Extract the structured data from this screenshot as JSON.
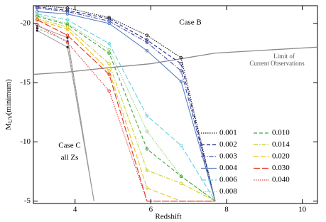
{
  "chart_data": {
    "type": "line",
    "xlabel": "Redshift",
    "ylabel": "M",
    "ylabel_sub": "UV",
    "ylabel_suffix": "(minimum)",
    "annotations": {
      "case_b": "Case B",
      "case_c_1": "Case C",
      "case_c_2": "all Zs",
      "limit_1": "Limit of",
      "limit_2": "Current Observations"
    },
    "xlim": [
      2.9,
      10.4
    ],
    "ylim": [
      -4.8,
      -21.5
    ],
    "xticks": [
      4,
      6,
      8,
      10
    ],
    "yticks": [
      -20,
      -15,
      -10,
      -5
    ],
    "x": [
      3,
      3.8,
      4.9,
      5.9,
      6.8,
      7.7
    ],
    "series": [
      {
        "name": "0.001",
        "color": "#222222",
        "dash": "1.5,1.5",
        "values": [
          -21.5,
          -21.3,
          -20.5,
          -19.0,
          -17.1,
          -5.0
        ]
      },
      {
        "name": "0.002",
        "color": "#1f2a80",
        "dash": "5,3",
        "values": [
          -21.4,
          -21.1,
          -20.4,
          -18.6,
          -16.6,
          -5.0
        ]
      },
      {
        "name": "0.003",
        "color": "#4a4aa8",
        "dash": "6,2,1.5,2",
        "values": [
          -21.3,
          -21.0,
          -20.2,
          -18.4,
          -16.0,
          -5.0
        ]
      },
      {
        "name": "0.004",
        "color": "#5b80c0",
        "dash": "none",
        "values": [
          -21.0,
          -20.8,
          -20.0,
          -17.7,
          -15.1,
          -5.0
        ]
      },
      {
        "name": "0.006",
        "color": "#66d0e2",
        "dash": "7,3",
        "values": [
          -20.8,
          -20.3,
          -18.3,
          -12.2,
          -9.7,
          -5.0
        ]
      },
      {
        "name": "0.008",
        "color": "#98d27a",
        "dash": "1.5,1.5",
        "values": [
          -20.7,
          -20.0,
          -17.8,
          -10.9,
          -7.1,
          -5.0
        ]
      },
      {
        "name": "0.010",
        "color": "#44a444",
        "dash": "5,3",
        "values": [
          -20.6,
          -19.9,
          -17.5,
          -9.4,
          -7.1,
          -5.0
        ]
      },
      {
        "name": "0.014",
        "color": "#c8d024",
        "dash": "6,2,1.5,2",
        "values": [
          -20.4,
          -19.7,
          -16.6,
          -7.6,
          -6.5,
          -5.0
        ]
      },
      {
        "name": "0.020",
        "color": "#f0c020",
        "dash": "7,3",
        "values": [
          -20.3,
          -19.5,
          -16.0,
          -6.1,
          -5.0,
          -5.0
        ]
      },
      {
        "name": "0.030",
        "color": "#e03020",
        "dash": "9,3",
        "values": [
          -20.3,
          -19.0,
          -15.7,
          -5.0,
          -5.0,
          -5.0
        ]
      },
      {
        "name": "0.040",
        "color": "#e04848",
        "dash": "1.5,1.5",
        "values": [
          -19.9,
          -18.4,
          -14.3,
          -5.0,
          -5.0,
          -5.0
        ]
      }
    ],
    "case_c": {
      "color": "#999999",
      "x": [
        3,
        3.8,
        4.5
      ],
      "lines": [
        [
          -19.8,
          -18.8,
          -5.0
        ],
        [
          -19.6,
          -18.5,
          -5.0
        ],
        [
          -19.4,
          -18.0,
          -5.0
        ]
      ]
    },
    "limit": {
      "color": "#8a8a8a",
      "x": [
        2.9,
        3.8,
        5.0,
        6.0,
        7.7,
        10.4
      ],
      "values": [
        -15.7,
        -15.9,
        -16.3,
        -16.6,
        -17.5,
        -18.0
      ]
    }
  }
}
